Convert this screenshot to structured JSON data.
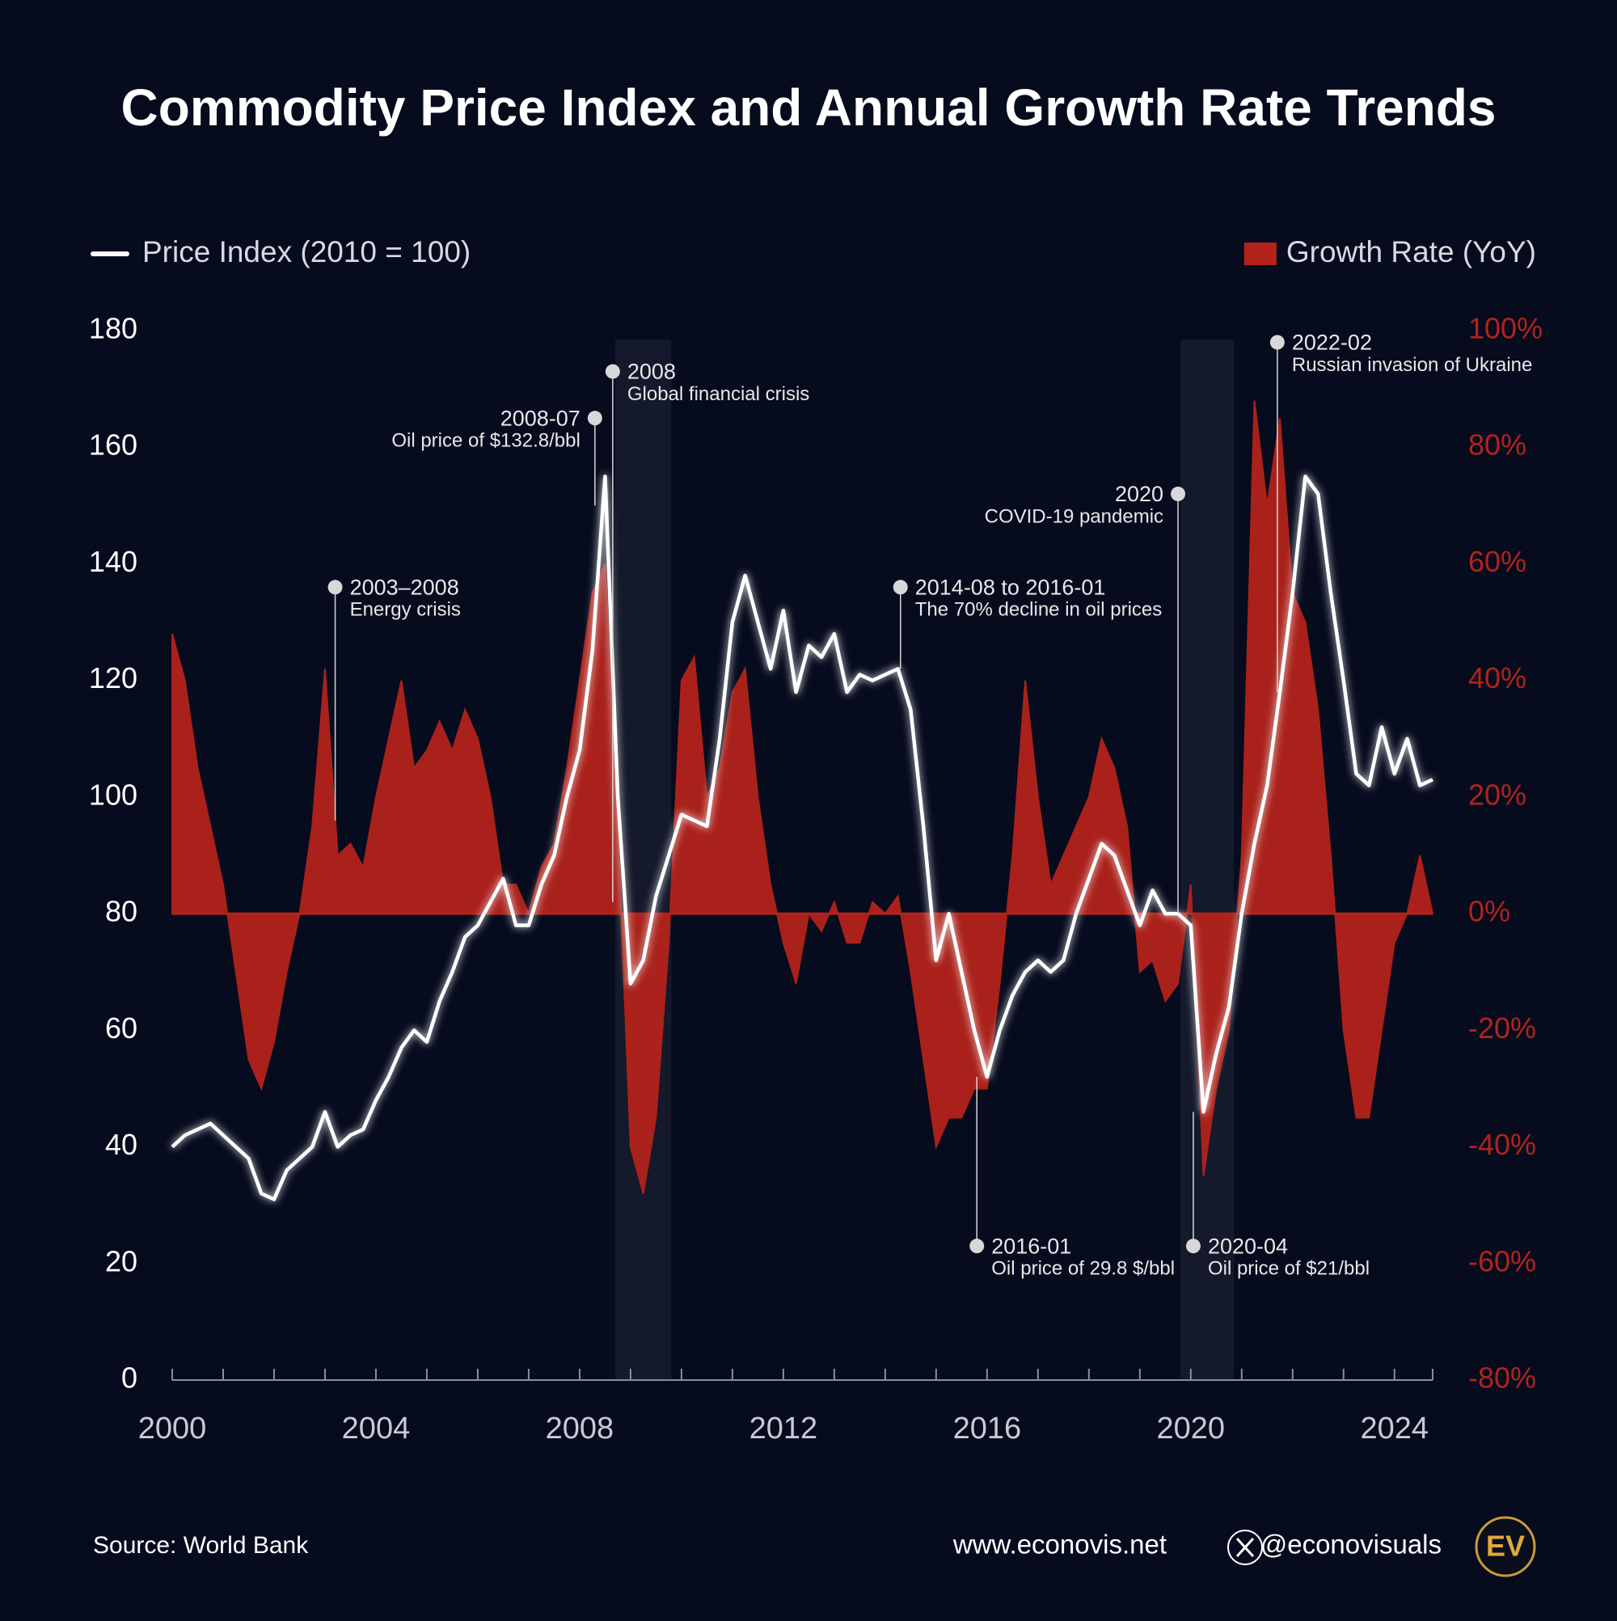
{
  "chart_data": {
    "type": "line-area",
    "title": "Commodity Price Index and Annual Growth Rate Trends",
    "x": [
      2000,
      2000.25,
      2000.5,
      2000.75,
      2001,
      2001.25,
      2001.5,
      2001.75,
      2002,
      2002.25,
      2002.5,
      2002.75,
      2003,
      2003.25,
      2003.5,
      2003.75,
      2004,
      2004.25,
      2004.5,
      2004.75,
      2005,
      2005.25,
      2005.5,
      2005.75,
      2006,
      2006.25,
      2006.5,
      2006.75,
      2007,
      2007.25,
      2007.5,
      2007.75,
      2008,
      2008.25,
      2008.5,
      2008.75,
      2009,
      2009.25,
      2009.5,
      2009.75,
      2010,
      2010.25,
      2010.5,
      2010.75,
      2011,
      2011.25,
      2011.5,
      2011.75,
      2012,
      2012.25,
      2012.5,
      2012.75,
      2013,
      2013.25,
      2013.5,
      2013.75,
      2014,
      2014.25,
      2014.5,
      2014.75,
      2015,
      2015.25,
      2015.5,
      2015.75,
      2016,
      2016.25,
      2016.5,
      2016.75,
      2017,
      2017.25,
      2017.5,
      2017.75,
      2018,
      2018.25,
      2018.5,
      2018.75,
      2019,
      2019.25,
      2019.5,
      2019.75,
      2020,
      2020.25,
      2020.5,
      2020.75,
      2021,
      2021.25,
      2021.5,
      2021.75,
      2022,
      2022.25,
      2022.5,
      2022.75,
      2023,
      2023.25,
      2023.5,
      2023.75,
      2024,
      2024.25,
      2024.5,
      2024.75
    ],
    "series": [
      {
        "name": "Growth Rate (YoY)",
        "color": "#b3231b",
        "axis": "y2",
        "kind": "area",
        "values": [
          48,
          40,
          25,
          15,
          5,
          -10,
          -25,
          -30,
          -22,
          -10,
          0,
          15,
          42,
          10,
          12,
          8,
          20,
          30,
          40,
          25,
          28,
          33,
          28,
          35,
          30,
          20,
          5,
          5,
          0,
          8,
          12,
          25,
          40,
          55,
          60,
          15,
          -40,
          -48,
          -35,
          -5,
          40,
          44,
          20,
          25,
          38,
          42,
          20,
          5,
          -5,
          -12,
          0,
          -3,
          2,
          -5,
          -5,
          2,
          0,
          3,
          -10,
          -25,
          -40,
          -35,
          -35,
          -30,
          -30,
          -12,
          10,
          40,
          20,
          5,
          10,
          15,
          20,
          30,
          25,
          15,
          -10,
          -8,
          -15,
          -12,
          5,
          -45,
          -30,
          -20,
          10,
          88,
          70,
          85,
          55,
          50,
          35,
          10,
          -20,
          -35,
          -35,
          -20,
          -5,
          0,
          10,
          0
        ]
      },
      {
        "name": "Price Index (2010 = 100)",
        "color": "#ffffff",
        "kind": "line",
        "values": [
          40,
          42,
          43,
          44,
          42,
          40,
          38,
          32,
          31,
          36,
          38,
          40,
          46,
          40,
          42,
          43,
          48,
          52,
          57,
          60,
          58,
          65,
          70,
          76,
          78,
          82,
          86,
          78,
          78,
          85,
          90,
          100,
          108,
          125,
          155,
          100,
          68,
          72,
          83,
          90,
          97,
          96,
          95,
          110,
          130,
          138,
          130,
          122,
          132,
          118,
          126,
          124,
          128,
          118,
          121,
          120,
          121,
          122,
          115,
          95,
          72,
          80,
          70,
          60,
          52,
          60,
          66,
          70,
          72,
          70,
          72,
          80,
          86,
          92,
          90,
          84,
          78,
          84,
          80,
          80,
          78,
          46,
          56,
          64,
          80,
          92,
          102,
          118,
          135,
          155,
          152,
          135,
          120,
          104,
          102,
          112,
          104,
          110,
          102,
          103
        ]
      }
    ],
    "xlim": [
      2000,
      2024.75
    ],
    "xticks": [
      2000,
      2004,
      2008,
      2012,
      2016,
      2020,
      2024
    ],
    "xminor_ticks": [
      2000,
      2001,
      2002,
      2003,
      2004,
      2005,
      2006,
      2007,
      2008,
      2009,
      2010,
      2011,
      2012,
      2013,
      2014,
      2015,
      2016,
      2017,
      2018,
      2019,
      2020,
      2021,
      2022,
      2023,
      2024
    ],
    "ylim": [
      0,
      180
    ],
    "yticks": [
      0,
      20,
      40,
      60,
      80,
      100,
      120,
      140,
      160,
      180
    ],
    "y2lim": [
      -80,
      100
    ],
    "y2ticks": [
      {
        "value": -80,
        "label": "-80%"
      },
      {
        "value": -60,
        "label": "-60%"
      },
      {
        "value": -40,
        "label": "-40%"
      },
      {
        "value": -20,
        "label": "-20%"
      },
      {
        "value": 0,
        "label": "0%"
      },
      {
        "value": 20,
        "label": "20%"
      },
      {
        "value": 40,
        "label": "40%"
      },
      {
        "value": 60,
        "label": "60%"
      },
      {
        "value": 80,
        "label": "80%"
      },
      {
        "value": 100,
        "label": "100%"
      }
    ],
    "shaded_periods": [
      [
        2008.7,
        2009.8
      ],
      [
        2019.8,
        2020.85
      ]
    ],
    "annotations": [
      {
        "title": "2003–2008",
        "text": "Energy crisis",
        "x": 2003.2,
        "y": 136,
        "y_end": 96,
        "side": "right"
      },
      {
        "title": "2008-07",
        "text": "Oil price of $132.8/bbl",
        "x": 2008.3,
        "y": 165,
        "y_end": 150,
        "side": "left"
      },
      {
        "title": "2008",
        "text": "Global financial crisis",
        "x": 2008.65,
        "y": 173,
        "y_end": 82,
        "side": "right"
      },
      {
        "title": "2014-08 to 2016-01",
        "text": "The 70% decline in oil prices",
        "x": 2014.3,
        "y": 136,
        "y_end": 122,
        "side": "right"
      },
      {
        "title": "2020",
        "text": "COVID-19 pandemic",
        "x": 2019.75,
        "y": 152,
        "y_end": 80,
        "side": "left"
      },
      {
        "title": "2022-02",
        "text": "Russian invasion of Ukraine",
        "x": 2021.7,
        "y": 178,
        "y_end": 118,
        "side": "right"
      },
      {
        "title": "2016-01",
        "text": "Oil price of 29.8 $/bbl",
        "x": 2015.8,
        "y": 23,
        "y_end": 52,
        "side": "right"
      },
      {
        "title": "2020-04",
        "text": "Oil price of $21/bbl",
        "x": 2020.05,
        "y": 23,
        "y_end": 46,
        "side": "right"
      }
    ],
    "source": "Source: World Bank",
    "website": "www.econovis.net",
    "handle": "@econovisuals",
    "logo": "EV"
  }
}
